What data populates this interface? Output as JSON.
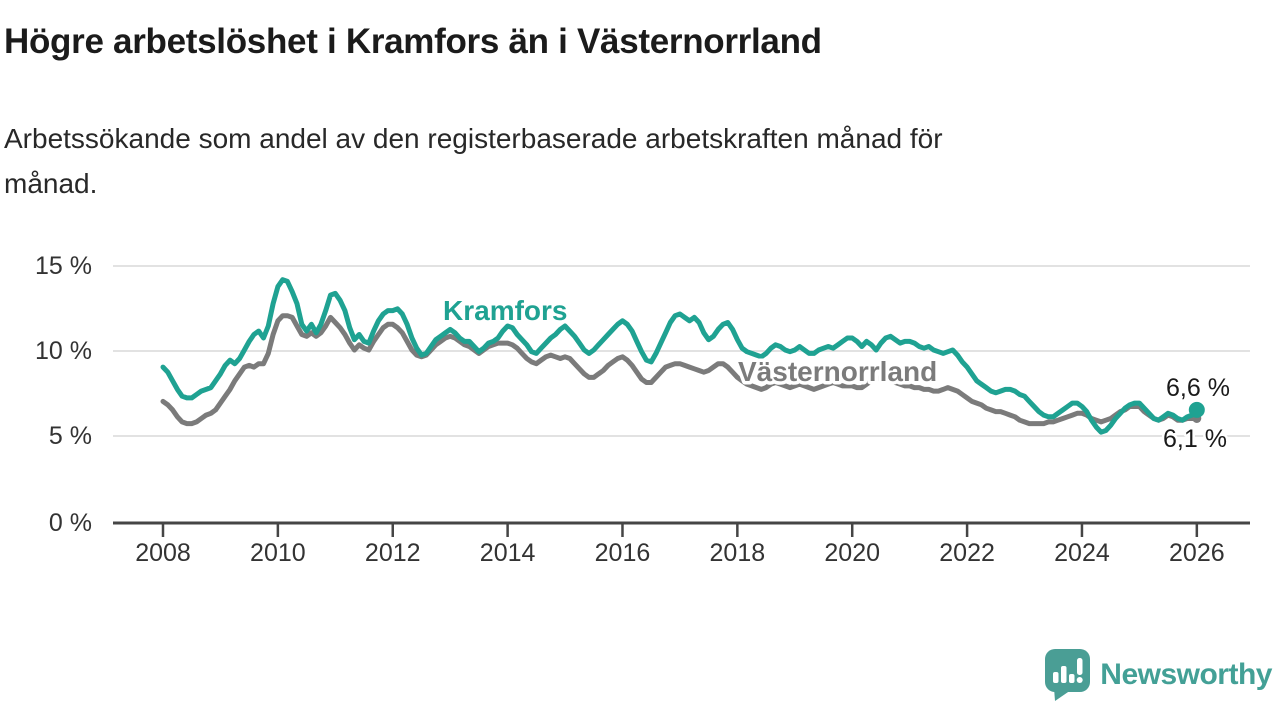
{
  "header": {
    "title": "Högre arbetslöshet i Kramfors än i Västernorrland",
    "subtitle_line1": "Arbetssökande som andel av den registerbaserade arbetskraften månad för",
    "subtitle_line2": "månad."
  },
  "footer": {
    "brand": "Newsworthy",
    "brand_color": "#43a096",
    "icon_color": "#4a9e95"
  },
  "chart_data": {
    "type": "line",
    "title": "Högre arbetslöshet i Kramfors än i Västernorrland",
    "subtitle": "Arbetssökande som andel av den registerbaserade arbetskraften månad för månad.",
    "xlabel": "",
    "ylabel": "",
    "x_unit": "month",
    "x_start": 2008,
    "x_end": 2026,
    "x_ticks": [
      2008,
      2010,
      2012,
      2014,
      2016,
      2018,
      2020,
      2022,
      2024,
      2026
    ],
    "ylim": [
      0,
      15
    ],
    "y_tick_values": [
      15,
      10,
      5,
      0
    ],
    "y_tick_labels": [
      "15 %",
      "10 %",
      "5 %",
      "0 %"
    ],
    "grid": "horizontal",
    "legend": "inline-labels",
    "axis_color": "#454545",
    "grid_color": "#d9d9d9",
    "series": [
      {
        "name": "Kramfors",
        "key": "kramfors",
        "color": "#1fa292",
        "end_label": "6,6 %",
        "end_value": 6.6,
        "end_dot": true,
        "values": [
          9.1,
          8.8,
          8.3,
          7.8,
          7.4,
          7.3,
          7.3,
          7.5,
          7.7,
          7.8,
          7.9,
          8.3,
          8.7,
          9.2,
          9.5,
          9.3,
          9.6,
          10.1,
          10.6,
          11.0,
          11.2,
          10.8,
          11.5,
          12.8,
          13.8,
          14.2,
          14.1,
          13.5,
          12.8,
          11.6,
          11.2,
          11.6,
          11.1,
          11.6,
          12.4,
          13.3,
          13.4,
          13.0,
          12.4,
          11.4,
          10.7,
          11.0,
          10.6,
          10.5,
          11.2,
          11.8,
          12.2,
          12.4,
          12.4,
          12.5,
          12.2,
          11.6,
          10.8,
          10.2,
          9.8,
          9.9,
          10.3,
          10.7,
          10.9,
          11.1,
          11.3,
          11.1,
          10.8,
          10.6,
          10.6,
          10.3,
          10.0,
          10.2,
          10.5,
          10.6,
          10.8,
          11.2,
          11.5,
          11.4,
          11.0,
          10.7,
          10.4,
          10.0,
          9.9,
          10.2,
          10.5,
          10.8,
          11.0,
          11.3,
          11.5,
          11.2,
          10.9,
          10.5,
          10.1,
          9.9,
          10.1,
          10.4,
          10.7,
          11.0,
          11.3,
          11.6,
          11.8,
          11.6,
          11.2,
          10.6,
          10.0,
          9.5,
          9.4,
          9.9,
          10.5,
          11.1,
          11.7,
          12.1,
          12.2,
          12.0,
          11.8,
          12.0,
          11.7,
          11.1,
          10.7,
          10.9,
          11.3,
          11.6,
          11.7,
          11.3,
          10.7,
          10.2,
          10.0,
          9.9,
          9.8,
          9.7,
          9.9,
          10.2,
          10.4,
          10.3,
          10.1,
          10.0,
          10.1,
          10.3,
          10.1,
          9.9,
          9.9,
          10.1,
          10.2,
          10.3,
          10.2,
          10.4,
          10.6,
          10.8,
          10.8,
          10.6,
          10.3,
          10.6,
          10.4,
          10.1,
          10.5,
          10.8,
          10.9,
          10.7,
          10.5,
          10.6,
          10.6,
          10.5,
          10.3,
          10.2,
          10.3,
          10.1,
          10.0,
          9.9,
          10.0,
          10.1,
          9.8,
          9.4,
          9.1,
          8.7,
          8.3,
          8.1,
          7.9,
          7.7,
          7.6,
          7.7,
          7.8,
          7.8,
          7.7,
          7.5,
          7.4,
          7.1,
          6.8,
          6.5,
          6.3,
          6.2,
          6.2,
          6.4,
          6.6,
          6.8,
          7.0,
          7.0,
          6.8,
          6.5,
          6.0,
          5.6,
          5.3,
          5.4,
          5.7,
          6.1,
          6.4,
          6.7,
          6.9,
          7.0,
          7.0,
          6.7,
          6.4,
          6.1,
          6.0,
          6.2,
          6.4,
          6.3,
          6.1,
          6.0,
          6.2,
          6.3,
          6.6
        ]
      },
      {
        "name": "Västernorrland",
        "key": "vasternorrland",
        "color": "#7b7b7b",
        "end_label": "6,1 %",
        "end_value": 6.1,
        "end_dot": false,
        "values": [
          7.1,
          6.9,
          6.6,
          6.2,
          5.9,
          5.8,
          5.8,
          5.9,
          6.1,
          6.3,
          6.4,
          6.6,
          7.0,
          7.4,
          7.8,
          8.3,
          8.7,
          9.1,
          9.2,
          9.1,
          9.3,
          9.3,
          9.9,
          11.0,
          11.8,
          12.1,
          12.1,
          12.0,
          11.5,
          11.0,
          10.9,
          11.1,
          10.9,
          11.1,
          11.5,
          12.0,
          11.7,
          11.4,
          11.0,
          10.5,
          10.1,
          10.4,
          10.2,
          10.1,
          10.6,
          11.0,
          11.4,
          11.6,
          11.6,
          11.4,
          11.1,
          10.6,
          10.1,
          9.8,
          9.7,
          9.8,
          10.1,
          10.4,
          10.6,
          10.8,
          10.9,
          10.8,
          10.6,
          10.4,
          10.3,
          10.1,
          9.9,
          10.1,
          10.3,
          10.4,
          10.5,
          10.5,
          10.5,
          10.4,
          10.2,
          9.9,
          9.6,
          9.4,
          9.3,
          9.5,
          9.7,
          9.8,
          9.7,
          9.6,
          9.7,
          9.6,
          9.3,
          9.0,
          8.7,
          8.5,
          8.5,
          8.7,
          8.9,
          9.2,
          9.4,
          9.6,
          9.7,
          9.5,
          9.2,
          8.8,
          8.4,
          8.2,
          8.2,
          8.5,
          8.8,
          9.1,
          9.2,
          9.3,
          9.3,
          9.2,
          9.1,
          9.0,
          8.9,
          8.8,
          8.9,
          9.1,
          9.3,
          9.3,
          9.1,
          8.8,
          8.5,
          8.3,
          8.1,
          8.0,
          7.9,
          7.8,
          7.9,
          8.1,
          8.2,
          8.1,
          8.0,
          7.9,
          8.0,
          8.1,
          8.0,
          7.9,
          7.8,
          7.9,
          8.0,
          8.1,
          8.2,
          8.1,
          8.0,
          8.0,
          8.0,
          7.9,
          7.9,
          8.1,
          8.3,
          8.4,
          8.5,
          8.4,
          8.3,
          8.2,
          8.1,
          8.0,
          8.0,
          7.9,
          7.9,
          7.8,
          7.8,
          7.7,
          7.7,
          7.8,
          7.9,
          7.8,
          7.7,
          7.5,
          7.3,
          7.1,
          7.0,
          6.9,
          6.7,
          6.6,
          6.5,
          6.5,
          6.4,
          6.3,
          6.2,
          6.0,
          5.9,
          5.8,
          5.8,
          5.8,
          5.8,
          5.9,
          5.9,
          6.0,
          6.1,
          6.2,
          6.3,
          6.4,
          6.4,
          6.3,
          6.1,
          6.0,
          5.9,
          6.0,
          6.1,
          6.3,
          6.5,
          6.6,
          6.8,
          6.8,
          6.8,
          6.5,
          6.3,
          6.1,
          6.0,
          6.1,
          6.3,
          6.2,
          6.0,
          6.0,
          6.1,
          6.1,
          6.1
        ]
      }
    ]
  }
}
